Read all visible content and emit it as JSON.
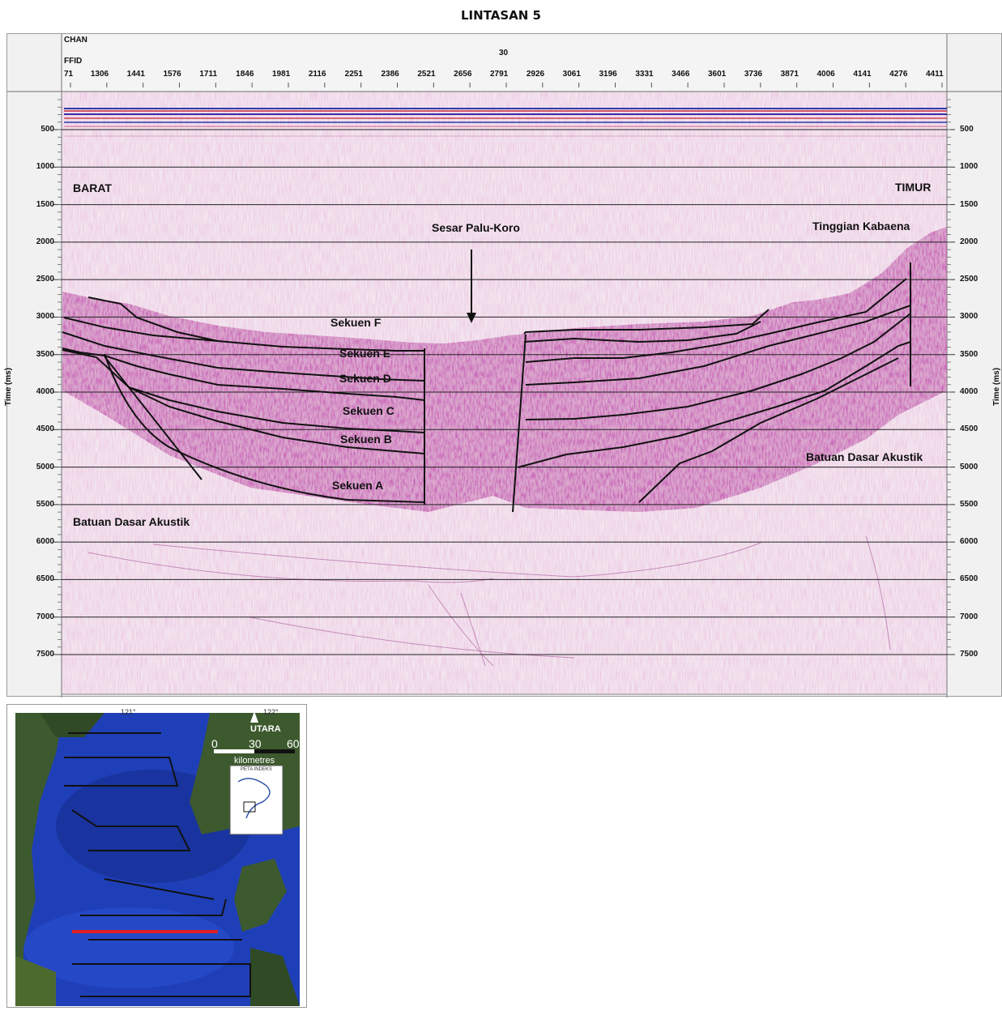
{
  "title": "LINTASAN 5",
  "header": {
    "chan_label": "CHAN",
    "ffid_label": "FFID",
    "chan_value": "30",
    "ffid_ticks": [
      "71",
      "1306",
      "1441",
      "1576",
      "1711",
      "1846",
      "1981",
      "2116",
      "2251",
      "2386",
      "2521",
      "2656",
      "2791",
      "2926",
      "3061",
      "3196",
      "3331",
      "3466",
      "3601",
      "3736",
      "3871",
      "4006",
      "4141",
      "4276",
      "4411"
    ]
  },
  "axes": {
    "y_label_left": "Time (ms)",
    "y_label_right": "Time (ms)",
    "y_ticks": [
      "500",
      "1000",
      "1500",
      "2000",
      "2500",
      "3000",
      "3500",
      "4000",
      "4500",
      "5000",
      "5500",
      "6000",
      "6500",
      "7000",
      "7500"
    ]
  },
  "annotations": {
    "west": "BARAT",
    "east": "TIMUR",
    "fault": "Sesar Palu-Koro",
    "high": "Tinggian Kabaena",
    "basement_left": "Batuan Dasar Akustik",
    "basement_right": "Batuan Dasar Akustik",
    "seq_f": "Sekuen F",
    "seq_e": "Sekuen E",
    "seq_d": "Sekuen D",
    "seq_c": "Sekuen C",
    "seq_b": "Sekuen B",
    "seq_a": "Sekuen A"
  },
  "map": {
    "lon1": "121°",
    "lon2": "122°",
    "north": "UTARA",
    "scale_0": "0",
    "scale_30": "30",
    "scale_60": "60",
    "scale_unit": "kilometres",
    "inset_title": "PETA INDEKS",
    "colors": {
      "sea": "#1f3fb8",
      "land": "#3d5a2e",
      "selected_line": "#e02020",
      "track": "#111111"
    }
  },
  "colors": {
    "seismic_bg": "#f4e4ef",
    "horizon": "#111111",
    "reflector": "#8a2a78"
  }
}
